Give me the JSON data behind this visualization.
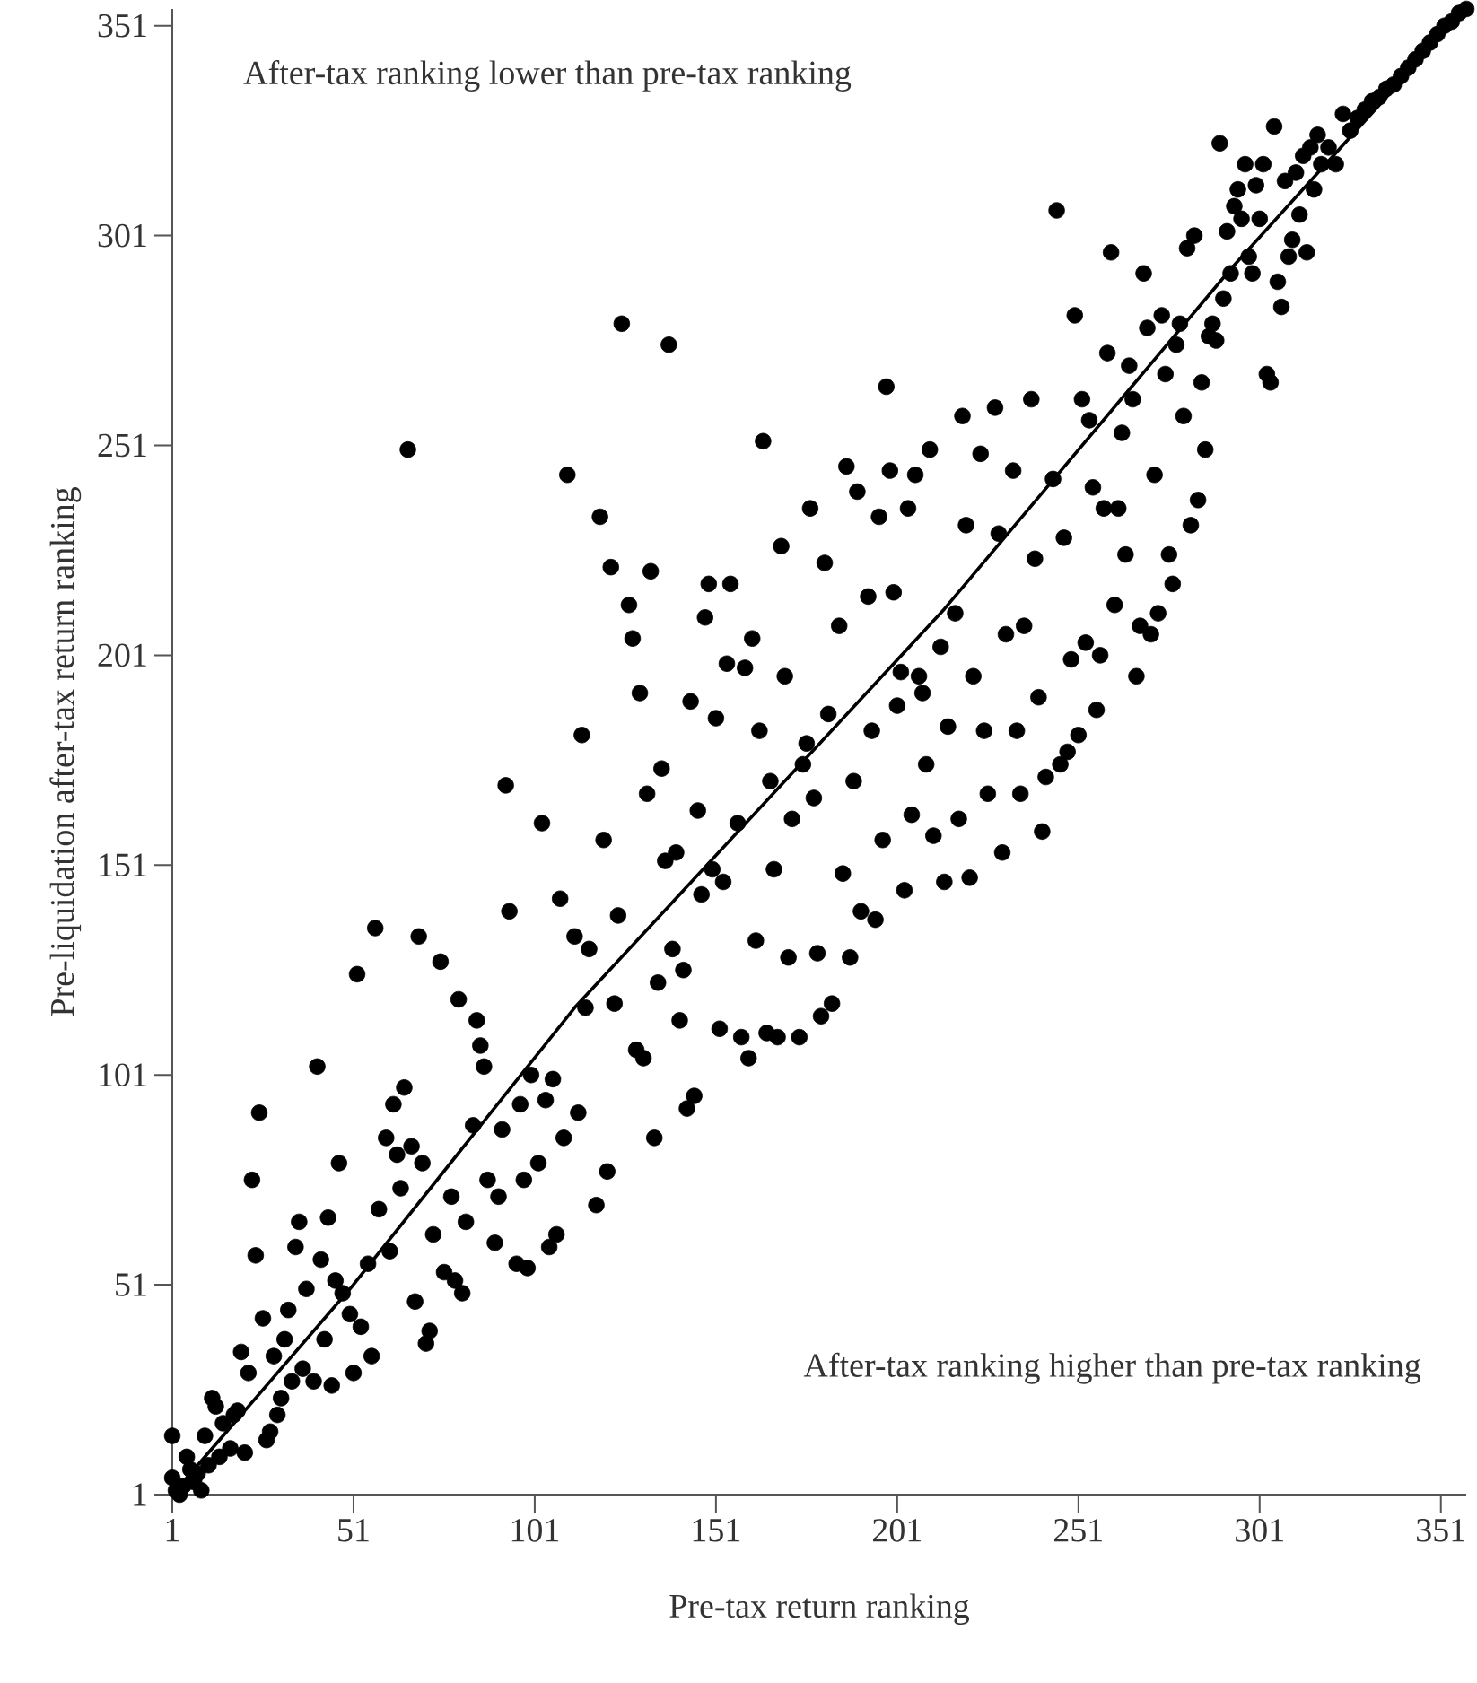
{
  "chart_data": {
    "type": "scatter",
    "xlabel": "Pre-tax return ranking",
    "ylabel": "Pre-liquidation after-tax return ranking",
    "annotations": [
      "After-tax ranking lower than pre-tax ranking",
      "After-tax ranking higher than pre-tax ranking"
    ],
    "xlim": [
      1,
      358
    ],
    "ylim": [
      1,
      355
    ],
    "xticks": [
      1,
      51,
      101,
      151,
      201,
      251,
      301,
      351
    ],
    "yticks": [
      1,
      51,
      101,
      151,
      201,
      251,
      301,
      351
    ],
    "marker": "circle",
    "series": [
      {
        "color": "#000000",
        "x": [
          1,
          1,
          2,
          3,
          4,
          5,
          6,
          7,
          8,
          9,
          10,
          11,
          12,
          13,
          14,
          15,
          17,
          18,
          19,
          20,
          21,
          22,
          23,
          24,
          25,
          26,
          27,
          28,
          29,
          30,
          31,
          32,
          33,
          34,
          35,
          36,
          37,
          38,
          40,
          41,
          42,
          43,
          44,
          45,
          46,
          47,
          48,
          50,
          51,
          52,
          53,
          55,
          56,
          57,
          58,
          60,
          61,
          62,
          63,
          64,
          65,
          66,
          67,
          68,
          69,
          70,
          71,
          72,
          73,
          75,
          76,
          78,
          79,
          80,
          81,
          82,
          84,
          85,
          86,
          87,
          88,
          90,
          91,
          92,
          93,
          94,
          96,
          97,
          98,
          99,
          100,
          102,
          103,
          104,
          105,
          106,
          107,
          108,
          109,
          110,
          112,
          113,
          114,
          115,
          116,
          118,
          119,
          120,
          121,
          122,
          123,
          124,
          125,
          127,
          128,
          129,
          130,
          131,
          132,
          133,
          134,
          135,
          136,
          137,
          138,
          139,
          140,
          141,
          142,
          143,
          144,
          145,
          146,
          147,
          148,
          149,
          150,
          151,
          152,
          153,
          154,
          155,
          157,
          158,
          159,
          160,
          161,
          162,
          163,
          164,
          165,
          166,
          167,
          168,
          169,
          170,
          171,
          172,
          174,
          175,
          176,
          177,
          178,
          179,
          180,
          181,
          182,
          183,
          185,
          186,
          187,
          188,
          189,
          190,
          191,
          193,
          194,
          195,
          196,
          197,
          198,
          199,
          200,
          201,
          202,
          203,
          204,
          205,
          206,
          207,
          208,
          209,
          210,
          211,
          213,
          214,
          215,
          217,
          218,
          219,
          220,
          221,
          222,
          224,
          225,
          226,
          228,
          229,
          230,
          231,
          233,
          234,
          235,
          236,
          238,
          239,
          240,
          241,
          242,
          244,
          245,
          246,
          247,
          248,
          249,
          250,
          251,
          252,
          253,
          254,
          255,
          256,
          257,
          258,
          259,
          260,
          261,
          262,
          263,
          264,
          265,
          266,
          267,
          268,
          269,
          270,
          271,
          272,
          273,
          274,
          275,
          276,
          277,
          278,
          279,
          280,
          281,
          282,
          283,
          284,
          285,
          286,
          287,
          288,
          289,
          290,
          291,
          292,
          293,
          294,
          295,
          296,
          297,
          298,
          299,
          300,
          301,
          302,
          303,
          304,
          305,
          306,
          307,
          308,
          309,
          310,
          311,
          312,
          313,
          314,
          315,
          316,
          317,
          318,
          320,
          322,
          324,
          326,
          328,
          330,
          332,
          334,
          336,
          338,
          340,
          342,
          344,
          346,
          348,
          350,
          352,
          354,
          356,
          358
        ],
        "values": [
          15,
          5,
          2,
          1,
          3,
          10,
          7,
          4,
          6,
          2,
          15,
          8,
          24,
          22,
          10,
          18,
          12,
          20,
          21,
          35,
          11,
          30,
          76,
          58,
          92,
          43,
          14,
          16,
          34,
          20,
          24,
          38,
          45,
          28,
          60,
          66,
          31,
          50,
          28,
          103,
          57,
          38,
          67,
          27,
          52,
          80,
          49,
          44,
          30,
          125,
          41,
          56,
          34,
          136,
          69,
          86,
          59,
          94,
          82,
          74,
          98,
          250,
          84,
          47,
          134,
          80,
          37,
          40,
          63,
          128,
          54,
          72,
          52,
          119,
          49,
          66,
          89,
          114,
          108,
          103,
          76,
          61,
          72,
          88,
          170,
          140,
          56,
          94,
          76,
          55,
          101,
          80,
          161,
          95,
          60,
          100,
          63,
          143,
          86,
          244,
          134,
          92,
          182,
          117,
          131,
          70,
          234,
          157,
          78,
          222,
          118,
          139,
          280,
          213,
          205,
          107,
          192,
          105,
          168,
          221,
          86,
          123,
          174,
          152,
          275,
          131,
          154,
          114,
          126,
          93,
          190,
          96,
          164,
          144,
          210,
          218,
          150,
          186,
          112,
          147,
          199,
          218,
          161,
          110,
          198,
          105,
          205,
          133,
          183,
          252,
          111,
          171,
          150,
          110,
          227,
          196,
          129,
          162,
          110,
          175,
          180,
          236,
          167,
          130,
          115,
          223,
          187,
          118,
          208,
          149,
          246,
          129,
          171,
          240,
          140,
          215,
          183,
          138,
          234,
          157,
          265,
          245,
          216,
          189,
          197,
          145,
          236,
          163,
          244,
          196,
          192,
          175,
          250,
          158,
          203,
          147,
          184,
          211,
          162,
          258,
          232,
          148,
          196,
          249,
          183,
          168,
          260,
          230,
          154,
          206,
          245,
          183,
          168,
          208,
          262,
          224,
          191,
          159,
          172,
          243,
          307,
          175,
          229,
          178,
          200,
          282,
          182,
          262,
          204,
          257,
          241,
          188,
          201,
          236,
          273,
          297,
          213,
          236,
          254,
          225,
          270,
          262,
          196,
          208,
          292,
          279,
          206,
          244,
          211,
          282,
          268,
          225,
          218,
          275,
          280,
          258,
          298,
          232,
          301,
          238,
          266,
          250,
          277,
          280,
          276,
          323,
          286,
          302,
          292,
          308,
          312,
          305,
          318,
          296,
          292,
          313,
          305,
          318,
          268,
          266,
          327,
          290,
          284,
          314,
          296,
          300,
          316,
          306,
          320,
          297,
          322,
          312,
          325,
          318,
          322,
          318,
          330,
          326,
          329,
          331,
          333,
          334,
          336,
          337,
          339,
          341,
          343,
          345,
          347,
          349,
          351,
          352,
          354,
          355
        ]
      },
      {
        "type": "line",
        "color": "#000000",
        "marker": "none",
        "x": [
          1,
          50,
          112,
          214,
          293,
          358
        ],
        "values": [
          1,
          50,
          117,
          212,
          293,
          355
        ]
      }
    ]
  }
}
